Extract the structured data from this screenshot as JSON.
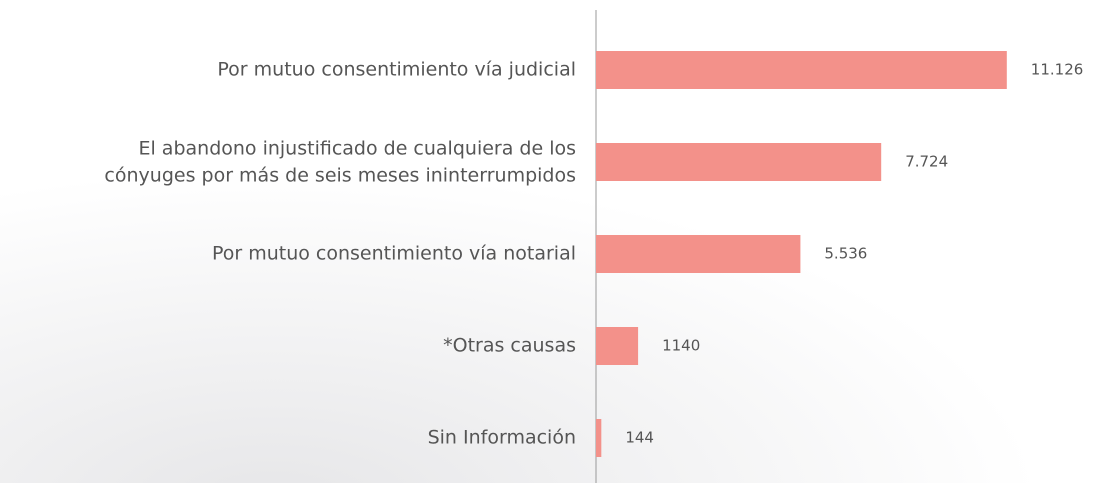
{
  "chart_data": {
    "type": "bar",
    "orientation": "horizontal",
    "categories": [
      "Por mutuo consentimiento vía judicial",
      "El abandono injustificado de cualquiera de los\ncónyuges por más de seis meses ininterrumpidos",
      "Por mutuo consentimiento vía notarial",
      "*Otras causas",
      "Sin Información"
    ],
    "values": [
      11126,
      7724,
      5536,
      1140,
      144
    ],
    "value_labels": [
      "11.126",
      "7.724",
      "5.536",
      "1140",
      "144"
    ],
    "color": "#f3918a",
    "xlim": [
      0,
      13000
    ]
  }
}
